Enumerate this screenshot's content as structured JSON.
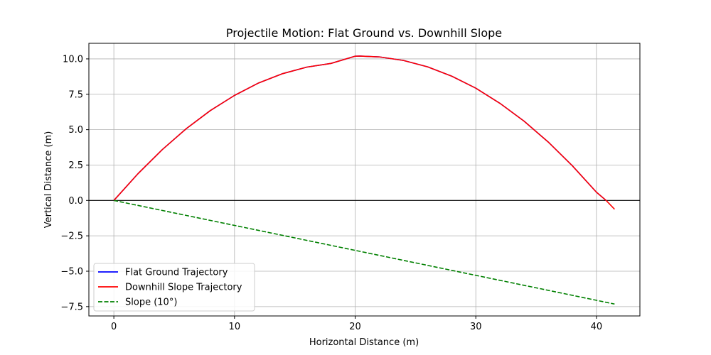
{
  "chart_data": {
    "type": "line",
    "title": "Projectile Motion: Flat Ground vs. Downhill Slope",
    "xlabel": "Horizontal Distance (m)",
    "ylabel": "Vertical Distance (m)",
    "xlim": [
      -2.07,
      43.6
    ],
    "ylim": [
      -8.16,
      11.1
    ],
    "xticks": [
      0,
      10,
      20,
      30,
      40
    ],
    "xtick_labels": [
      "0",
      "10",
      "20",
      "30",
      "40"
    ],
    "yticks": [
      -7.5,
      -5.0,
      -2.5,
      0.0,
      2.5,
      5.0,
      7.5,
      10.0
    ],
    "ytick_labels": [
      "−7.5",
      "−5.0",
      "−2.5",
      "0.0",
      "2.5",
      "5.0",
      "7.5",
      "10.0"
    ],
    "grid": true,
    "legend_position": "lower-left",
    "reference_line": {
      "y": 0,
      "color": "#000000"
    },
    "series": [
      {
        "name": "Flat Ground Trajectory",
        "color": "#0000ff",
        "style": "solid",
        "x": [
          0,
          2,
          4,
          6,
          8,
          10,
          12,
          14,
          16,
          18,
          20,
          20.4,
          22,
          24,
          26,
          28,
          30,
          32,
          34,
          36,
          38,
          40,
          40.8
        ],
        "y": [
          0,
          1.89,
          3.58,
          5.07,
          6.35,
          7.42,
          8.3,
          8.96,
          9.42,
          9.68,
          10.19,
          10.2,
          10.14,
          9.89,
          9.44,
          8.78,
          7.93,
          6.86,
          5.6,
          4.13,
          2.45,
          0.58,
          0
        ]
      },
      {
        "name": "Downhill Slope Trajectory",
        "color": "#ff0000",
        "style": "solid",
        "x": [
          0,
          2,
          4,
          6,
          8,
          10,
          12,
          14,
          16,
          18,
          20,
          20.4,
          22,
          24,
          26,
          28,
          30,
          32,
          34,
          36,
          38,
          40,
          40.8,
          41.5
        ],
        "y": [
          0,
          1.89,
          3.58,
          5.07,
          6.35,
          7.42,
          8.3,
          8.96,
          9.42,
          9.68,
          10.19,
          10.2,
          10.14,
          9.89,
          9.44,
          8.78,
          7.93,
          6.86,
          5.6,
          4.13,
          2.45,
          0.58,
          0,
          -0.62
        ]
      },
      {
        "name": "Slope (10°)",
        "color": "#008000",
        "style": "dashed",
        "x": [
          0,
          41.5
        ],
        "y": [
          0,
          -7.32
        ]
      }
    ]
  }
}
